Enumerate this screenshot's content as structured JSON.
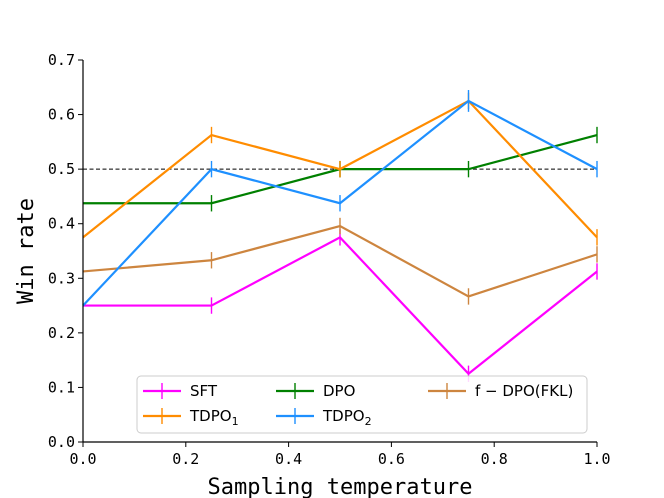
{
  "chart_data": {
    "type": "line",
    "title": "",
    "xlabel": "Sampling temperature",
    "ylabel": "Win rate",
    "xlim": [
      0.0,
      1.0
    ],
    "ylim": [
      0.0,
      0.7
    ],
    "xticks": [
      0.0,
      0.2,
      0.4,
      0.6,
      0.8,
      1.0
    ],
    "xtick_labels": [
      "0.0",
      "0.2",
      "0.4",
      "0.6",
      "0.8",
      "1.0"
    ],
    "yticks": [
      0.0,
      0.1,
      0.2,
      0.3,
      0.4,
      0.5,
      0.6,
      0.7
    ],
    "ytick_labels": [
      "0.0",
      "0.1",
      "0.2",
      "0.3",
      "0.4",
      "0.5",
      "0.6",
      "0.7"
    ],
    "reference_line": {
      "y": 0.5,
      "style": "dashed",
      "color": "#000000"
    },
    "x": [
      0.0,
      0.25,
      0.5,
      0.75,
      1.0
    ],
    "series": [
      {
        "name": "SFT",
        "legend": {
          "main": "SFT",
          "sub": ""
        },
        "color": "#ff00ff",
        "values": [
          0.25,
          0.25,
          0.375,
          0.125,
          0.3125
        ],
        "errors": [
          0.0,
          0.015,
          0.015,
          0.015,
          0.015
        ]
      },
      {
        "name": "DPO",
        "legend": {
          "main": "DPO",
          "sub": ""
        },
        "color": "#008000",
        "values": [
          0.4375,
          0.4375,
          0.5,
          0.5,
          0.5625
        ],
        "errors": [
          0.0,
          0.015,
          0.015,
          0.015,
          0.015
        ]
      },
      {
        "name": "f-DPO(FKL)",
        "legend": {
          "main": "f − DPO(FKL)",
          "sub": ""
        },
        "color": "#cd853f",
        "values": [
          0.3125,
          0.333,
          0.3958,
          0.2667,
          0.3438
        ],
        "errors": [
          0.0,
          0.015,
          0.015,
          0.015,
          0.015
        ]
      },
      {
        "name": "TDPO1",
        "legend": {
          "main": "TDPO",
          "sub": "1"
        },
        "color": "#ff8c00",
        "values": [
          0.375,
          0.5625,
          0.5,
          0.625,
          0.375
        ],
        "errors": [
          0.0,
          0.015,
          0.015,
          0.015,
          0.015
        ]
      },
      {
        "name": "TDPO2",
        "legend": {
          "main": "TDPO",
          "sub": "2"
        },
        "color": "#1e90ff",
        "values": [
          0.25,
          0.5,
          0.4375,
          0.625,
          0.5
        ],
        "errors": [
          0.0,
          0.015,
          0.015,
          0.02,
          0.015
        ]
      }
    ],
    "legend_location": "lower-center",
    "legend_order": [
      "SFT",
      "TDPO1",
      "DPO",
      "TDPO2",
      "f-DPO(FKL)"
    ]
  }
}
